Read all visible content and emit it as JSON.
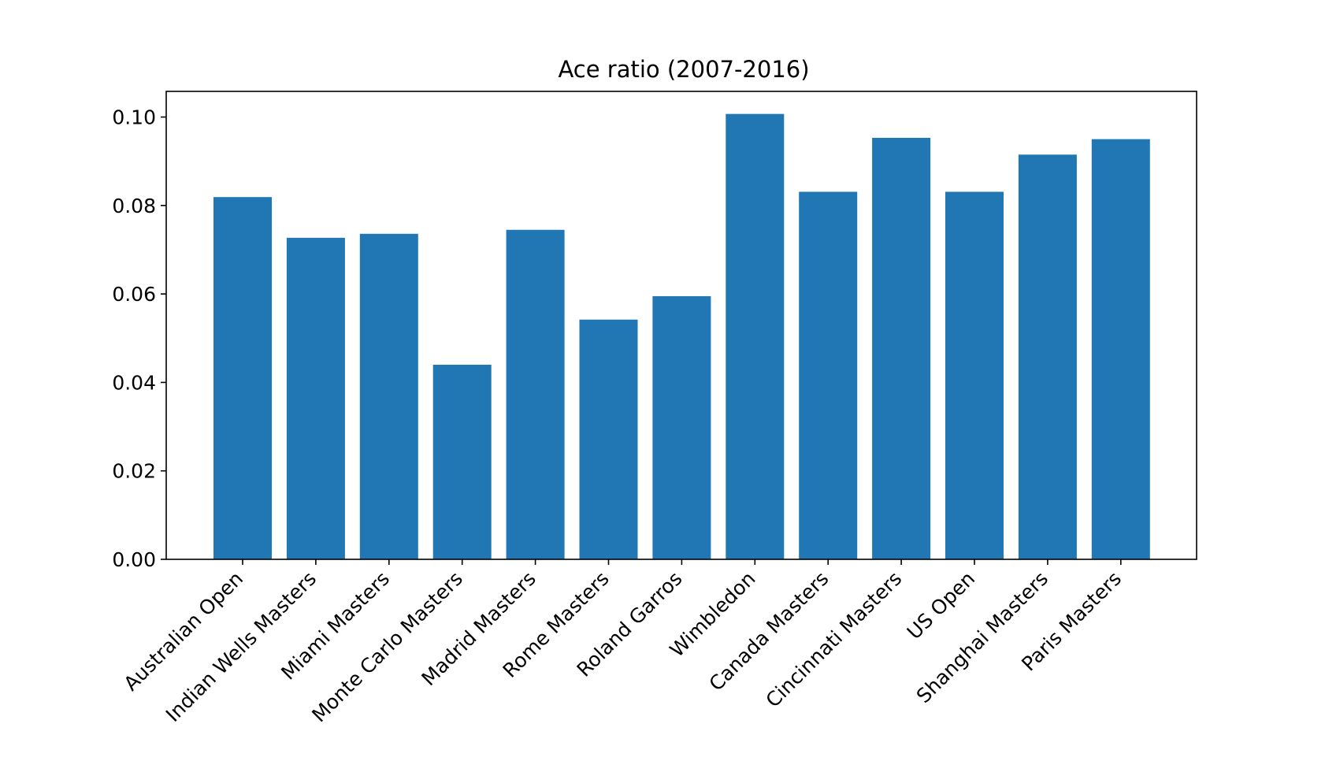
{
  "chart_data": {
    "type": "bar",
    "title": "Ace ratio (2007-2016)",
    "xlabel": "",
    "ylabel": "",
    "categories": [
      "Australian Open",
      "Indian Wells Masters",
      "Miami Masters",
      "Monte Carlo Masters",
      "Madrid Masters",
      "Rome Masters",
      "Roland Garros",
      "Wimbledon",
      "Canada Masters",
      "Cincinnati Masters",
      "US Open",
      "Shanghai Masters",
      "Paris Masters"
    ],
    "values": [
      0.0819,
      0.0727,
      0.0736,
      0.044,
      0.0745,
      0.0542,
      0.0595,
      0.1007,
      0.0831,
      0.0953,
      0.0831,
      0.0915,
      0.095
    ],
    "ylim": [
      0,
      0.1058
    ],
    "yticks": [
      "0.00",
      "0.02",
      "0.04",
      "0.06",
      "0.08",
      "0.10"
    ],
    "grid": false,
    "legend": "none",
    "bar_color": "#2077b4"
  }
}
